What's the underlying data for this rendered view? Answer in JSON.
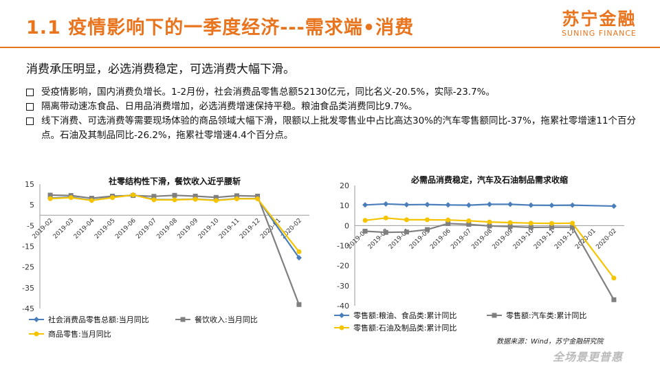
{
  "header": {
    "title": "1.1 疫情影响下的一季度经济---需求端•消费",
    "brand_cn": "苏宁金融",
    "brand_en": "SUNING FINANCE"
  },
  "subtitle": "消费承压明显，必选消费稳定，可选消费大幅下滑。",
  "bullets": [
    "受疫情影响，国内消费负增长。1-2月份，社会消费品零售总额52130亿元，同比名义-20.5%，实际-23.7%。",
    "隔离带动速冻食品、日用品消费增加，必选消费增速保持平稳。粮油食品类消费同比9.7%。",
    "线下消费、可选消费等需要现场体验的商品领域大幅下滑，限额以上批发零售业中占比高达30%的汽车零售额同比-37%，拖累社零增速11个百分点。石油及其制品同比-26.2%，拖累社零增速4.4个百分点。"
  ],
  "chart_data": [
    {
      "type": "line",
      "title": "社零结构性下滑，餐饮收入近乎腰斩",
      "categories": [
        "2019-02",
        "2019-03",
        "2019-04",
        "2019-05",
        "2019-06",
        "2019-07",
        "2019-08",
        "2019-09",
        "2019-10",
        "2019-11",
        "2019-12",
        "2020-01",
        "2020-02"
      ],
      "yticks": [
        15,
        5,
        -5,
        -15,
        -25,
        -35,
        -45
      ],
      "ylim": [
        -45,
        15
      ],
      "legend_position": "bottom",
      "series": [
        {
          "name": "社会消费品零售总额:当月同比",
          "color": "#4a7ebb",
          "marker": "diamond",
          "values": [
            8.2,
            8.7,
            7.2,
            8.6,
            9.8,
            7.6,
            7.5,
            7.8,
            7.2,
            8.0,
            8.0,
            null,
            -20.5
          ]
        },
        {
          "name": "餐饮收入:当月同比",
          "color": "#7f7f7f",
          "marker": "square",
          "values": [
            9.7,
            9.5,
            8.2,
            9.2,
            9.5,
            9.1,
            9.6,
            9.2,
            8.6,
            9.4,
            9.2,
            null,
            -43.1
          ]
        },
        {
          "name": "商品零售:当月同比",
          "color": "#f5c400",
          "marker": "circle",
          "values": [
            8.0,
            8.5,
            7.1,
            8.5,
            9.8,
            7.4,
            7.4,
            7.7,
            7.1,
            7.9,
            7.9,
            null,
            -17.6
          ]
        }
      ]
    },
    {
      "type": "line",
      "title": "必需品消费稳定，汽车及石油制品需求收缩",
      "categories": [
        "2019-02",
        "2019-03",
        "2019-04",
        "2019-05",
        "2019-06",
        "2019-07",
        "2019-08",
        "2019-09",
        "2019-10",
        "2019-11",
        "2019-12",
        "2020-01",
        "2020-02"
      ],
      "yticks": [
        20,
        10,
        0,
        -10,
        -20,
        -30,
        -40
      ],
      "ylim": [
        -40,
        20
      ],
      "legend_position": "bottom",
      "series": [
        {
          "name": "零售额:粮油、食品类:累计同比",
          "color": "#4a7ebb",
          "marker": "diamond",
          "values": [
            10.3,
            10.8,
            10.4,
            10.5,
            10.3,
            10.2,
            10.6,
            10.6,
            10.2,
            10.1,
            10.2,
            null,
            9.7
          ]
        },
        {
          "name": "零售额:汽车类:累计同比",
          "color": "#7f7f7f",
          "marker": "square",
          "values": [
            -2.8,
            -3.4,
            -3.2,
            -2.0,
            1.0,
            0.6,
            -0.2,
            -0.5,
            -0.9,
            -0.8,
            -0.8,
            null,
            -37.0
          ]
        },
        {
          "name": "零售额:石油及制品类:累计同比",
          "color": "#f5c400",
          "marker": "circle",
          "values": [
            2.6,
            3.8,
            2.9,
            2.9,
            2.8,
            2.4,
            1.8,
            1.5,
            1.2,
            1.1,
            1.2,
            null,
            -26.2
          ]
        }
      ]
    }
  ],
  "source": "数据来源：Wind，苏宁金融研究院",
  "slogan": "全场景更普惠"
}
